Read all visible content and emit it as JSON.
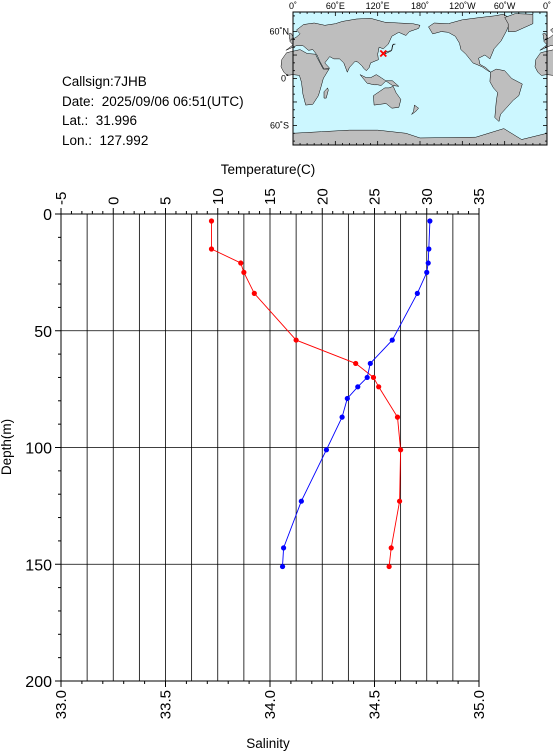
{
  "info": {
    "callsign": "Callsign:7JHB",
    "date": "Date:  2025/09/06 06:51(UTC)",
    "lat": "Lat.:  31.996",
    "lon": "Lon.:  127.992"
  },
  "map": {
    "lon_ticks": [
      "0˚",
      "60˚E",
      "120˚E",
      "180˚",
      "120˚W",
      "60˚W",
      "0˚"
    ],
    "lat_ticks": [
      "60˚N",
      "0˚",
      "60˚S"
    ],
    "marker": {
      "lat": 31.996,
      "lon": 127.992
    },
    "ocean_color": "#ccf7ff",
    "land_color": "#bebebe",
    "marker_color": "#ff0000"
  },
  "chart_data": {
    "type": "line",
    "top_axis": {
      "label": "Temperature(C)",
      "range": [
        -5,
        35
      ],
      "ticks": [
        "-5",
        "0",
        "5",
        "10",
        "15",
        "20",
        "25",
        "30",
        "35"
      ]
    },
    "bottom_axis": {
      "label": "Salinity",
      "range": [
        33.0,
        35.0
      ],
      "ticks": [
        "33.0",
        "33.5",
        "34.0",
        "34.5",
        "35.0"
      ]
    },
    "y_axis": {
      "label": "Depth(m)",
      "range": [
        0,
        200
      ],
      "inverted": true,
      "ticks": [
        "0",
        "50",
        "100",
        "150",
        "200"
      ]
    },
    "grid": true,
    "series": [
      {
        "axis": "temperature",
        "color": "#ff0000",
        "depth": [
          3,
          15,
          21,
          25,
          34,
          54,
          64,
          70,
          74,
          87,
          101,
          123,
          143,
          151
        ],
        "values": [
          9.4,
          9.4,
          12.2,
          12.5,
          13.5,
          17.5,
          23.2,
          24.9,
          25.4,
          27.2,
          27.5,
          27.4,
          26.6,
          26.4
        ]
      },
      {
        "axis": "salinity",
        "color": "#0000ff",
        "depth": [
          3,
          15,
          21,
          25,
          34,
          54,
          64,
          70,
          74,
          79,
          87,
          101,
          123,
          143,
          151
        ],
        "values": [
          34.765,
          34.76,
          34.757,
          34.75,
          34.705,
          34.585,
          34.48,
          34.465,
          34.42,
          34.37,
          34.345,
          34.27,
          34.15,
          34.065,
          34.06
        ]
      }
    ]
  }
}
